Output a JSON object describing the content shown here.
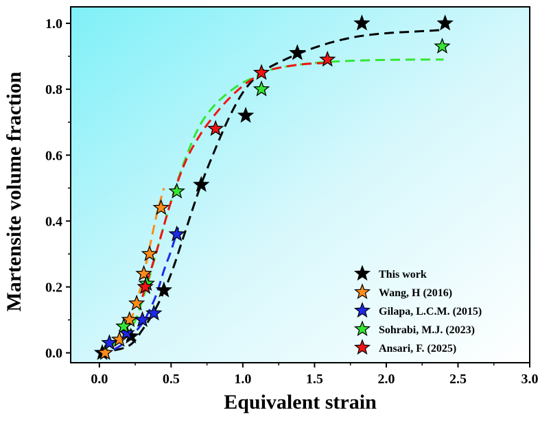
{
  "chart_data": {
    "type": "scatter",
    "xlabel": "Equivalent strain",
    "ylabel": "Martensite volume fraction",
    "xlim": [
      -0.2,
      3.0
    ],
    "ylim": [
      -0.03,
      1.05
    ],
    "xticks": [
      0.0,
      0.5,
      1.0,
      1.5,
      2.0,
      2.5,
      3.0
    ],
    "yticks": [
      0.0,
      0.2,
      0.4,
      0.6,
      0.8,
      1.0
    ],
    "xtick_labels": [
      "0.0",
      "0.5",
      "1.0",
      "1.5",
      "2.0",
      "2.5",
      "3.0"
    ],
    "ytick_labels": [
      "0.0",
      "0.2",
      "0.4",
      "0.6",
      "0.8",
      "1.0"
    ],
    "grid": false,
    "legend_position": "bottom-right",
    "background": "cyan-to-white diagonal gradient",
    "series": [
      {
        "name": "This work",
        "color": "#000000",
        "marker": "star",
        "x": [
          0.02,
          0.22,
          0.45,
          0.71,
          1.02,
          1.38,
          1.83,
          2.41
        ],
        "y": [
          0.0,
          0.05,
          0.19,
          0.51,
          0.72,
          0.91,
          1.0,
          1.0
        ],
        "fit": {
          "color": "#000000",
          "x": [
            0.0,
            0.2,
            0.3,
            0.4,
            0.5,
            0.6,
            0.7,
            0.8,
            0.9,
            1.0,
            1.1,
            1.2,
            1.4,
            1.6,
            1.8,
            2.0,
            2.2,
            2.4
          ],
          "y": [
            0.0,
            0.02,
            0.07,
            0.14,
            0.24,
            0.37,
            0.5,
            0.61,
            0.71,
            0.79,
            0.84,
            0.87,
            0.91,
            0.94,
            0.96,
            0.97,
            0.975,
            0.98
          ]
        }
      },
      {
        "name": "Wang, H (2016)",
        "color": "#FF8C1A",
        "marker": "star",
        "x": [
          0.04,
          0.14,
          0.21,
          0.26,
          0.31,
          0.35,
          0.43
        ],
        "y": [
          0.0,
          0.04,
          0.1,
          0.15,
          0.24,
          0.3,
          0.44
        ],
        "fit": {
          "color": "#FF8C1A",
          "x": [
            0.0,
            0.1,
            0.2,
            0.25,
            0.3,
            0.35,
            0.4,
            0.45
          ],
          "y": [
            0.0,
            0.02,
            0.08,
            0.14,
            0.22,
            0.32,
            0.42,
            0.5
          ]
        }
      },
      {
        "name": "Gilapa, L.C.M. (2015)",
        "color": "#1E28E6",
        "marker": "star",
        "x": [
          0.07,
          0.19,
          0.3,
          0.38,
          0.54
        ],
        "y": [
          0.03,
          0.06,
          0.1,
          0.12,
          0.36
        ],
        "fit": {
          "color": "#1E28E6",
          "x": [
            0.0,
            0.1,
            0.2,
            0.3,
            0.35,
            0.4,
            0.45,
            0.5,
            0.55
          ],
          "y": [
            0.0,
            0.01,
            0.04,
            0.09,
            0.13,
            0.18,
            0.25,
            0.31,
            0.38
          ]
        }
      },
      {
        "name": "Sohrabi, M.J. (2023)",
        "color": "#33E633",
        "marker": "star",
        "x": [
          0.17,
          0.33,
          0.54,
          1.13,
          2.39
        ],
        "y": [
          0.08,
          0.21,
          0.49,
          0.8,
          0.93
        ],
        "fit": {
          "color": "#33E633",
          "x": [
            0.0,
            0.2,
            0.3,
            0.4,
            0.5,
            0.6,
            0.7,
            0.8,
            0.9,
            1.0,
            1.1,
            1.2,
            1.4,
            1.6,
            1.8,
            2.0,
            2.2,
            2.4
          ],
          "y": [
            0.0,
            0.06,
            0.16,
            0.31,
            0.46,
            0.59,
            0.69,
            0.75,
            0.79,
            0.82,
            0.84,
            0.86,
            0.875,
            0.883,
            0.887,
            0.889,
            0.89,
            0.89
          ]
        }
      },
      {
        "name": "Ansari, F. (2025)",
        "color": "#F01414",
        "marker": "star",
        "x": [
          0.32,
          0.81,
          1.13,
          1.59
        ],
        "y": [
          0.2,
          0.68,
          0.85,
          0.89
        ],
        "fit": {
          "color": "#F01414",
          "x": [
            0.3,
            0.4,
            0.5,
            0.6,
            0.7,
            0.8,
            0.9,
            1.0,
            1.1,
            1.2,
            1.4,
            1.6
          ],
          "y": [
            0.17,
            0.31,
            0.46,
            0.58,
            0.66,
            0.72,
            0.77,
            0.81,
            0.84,
            0.86,
            0.875,
            0.88
          ]
        }
      }
    ]
  }
}
